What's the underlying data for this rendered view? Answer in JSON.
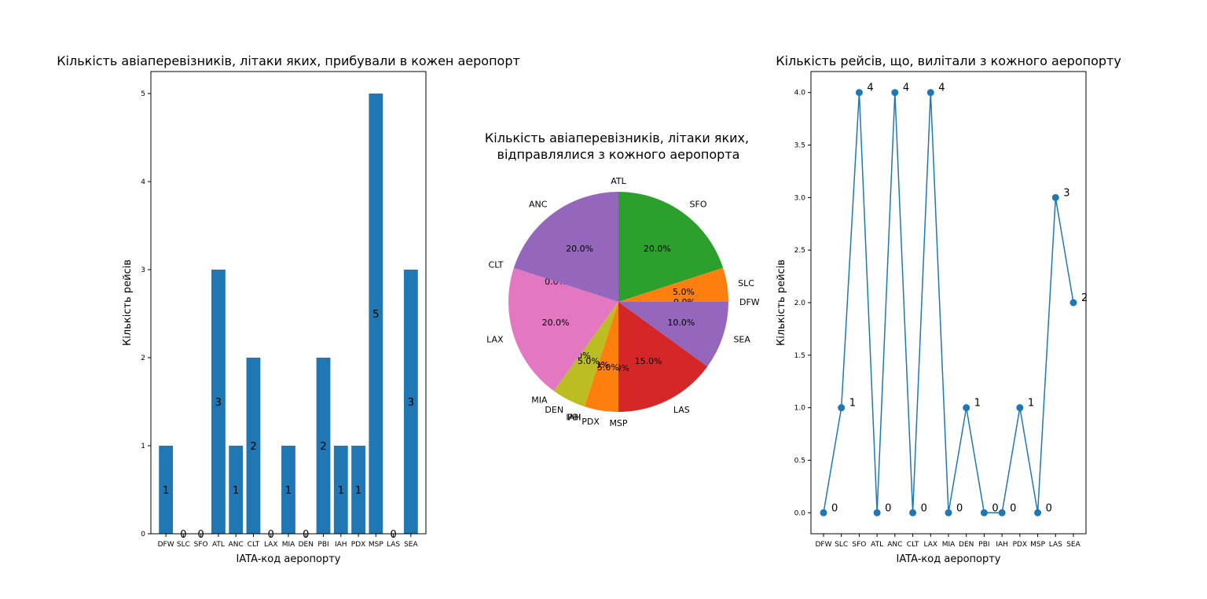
{
  "chart_data": [
    {
      "type": "bar",
      "title": "Кількість авіаперевізників, літаки яких, прибували в кожен аеропорт",
      "xlabel": "IATA-код аеропорту",
      "ylabel": "Кількість рейсів",
      "categories": [
        "DFW",
        "SLC",
        "SFO",
        "ATL",
        "ANC",
        "CLT",
        "LAX",
        "MIA",
        "DEN",
        "PBI",
        "IAH",
        "PDX",
        "MSP",
        "LAS",
        "SEA"
      ],
      "values": [
        1,
        0,
        0,
        3,
        1,
        2,
        0,
        1,
        0,
        2,
        1,
        1,
        5,
        0,
        3
      ],
      "ylim": [
        0,
        5.25
      ],
      "yticks": [
        "0",
        "1",
        "2",
        "3",
        "4",
        "5"
      ],
      "bar_color": "#1f77b4",
      "grid": false
    },
    {
      "type": "pie",
      "title_lines": [
        "Кількість авіаперевізників, літаки яких,",
        "відправлялися з кожного аеропорта"
      ],
      "labels": [
        "ATL",
        "SFO",
        "SLC",
        "DFW",
        "SEA",
        "LAS",
        "MSP",
        "PDX",
        "PBI",
        "IAH",
        "DEN",
        "MIA",
        "LAX",
        "CLT",
        "ANC"
      ],
      "values": [
        0,
        4,
        1,
        0,
        2,
        3,
        0,
        1,
        0,
        0,
        1,
        0,
        4,
        0,
        4
      ],
      "percent_labels": [
        "0.0%",
        "20.0%",
        "5.0%",
        "0.0%",
        "10.0%",
        "15.0%",
        "0.0%",
        "5.0%",
        "0.0%",
        "0.0%",
        "5.0%",
        "0.0%",
        "20.0%",
        "0.0%",
        "20.0%"
      ],
      "colors": [
        "#1f77b4",
        "#2ca02c",
        "#ff7f0e",
        "#1f77b4",
        "#9467bd",
        "#d62728",
        "#8c564b",
        "#ff7f0e",
        "#e377c2",
        "#7f7f7f",
        "#bcbd22",
        "#17becf",
        "#e377c2",
        "#8c564b",
        "#9467bd"
      ],
      "start_angle": 90,
      "direction": "clockwise"
    },
    {
      "type": "line",
      "title": "Кількість рейсів, що, вилітали з кожного аеропорту",
      "xlabel": "IATA-код аеропорту",
      "ylabel": "Кількість рейсів",
      "categories": [
        "DFW",
        "SLC",
        "SFO",
        "ATL",
        "ANC",
        "CLT",
        "LAX",
        "MIA",
        "DEN",
        "PBI",
        "IAH",
        "PDX",
        "MSP",
        "LAS",
        "SEA"
      ],
      "values": [
        0,
        1,
        4,
        0,
        4,
        0,
        4,
        0,
        1,
        0,
        0,
        1,
        0,
        3,
        2
      ],
      "ylim": [
        -0.2,
        4.2
      ],
      "yticks": [
        "0.0",
        "0.5",
        "1.0",
        "1.5",
        "2.0",
        "2.5",
        "3.0",
        "3.5",
        "4.0"
      ],
      "line_color": "#1f77b4",
      "marker": "circle",
      "grid": false
    }
  ]
}
